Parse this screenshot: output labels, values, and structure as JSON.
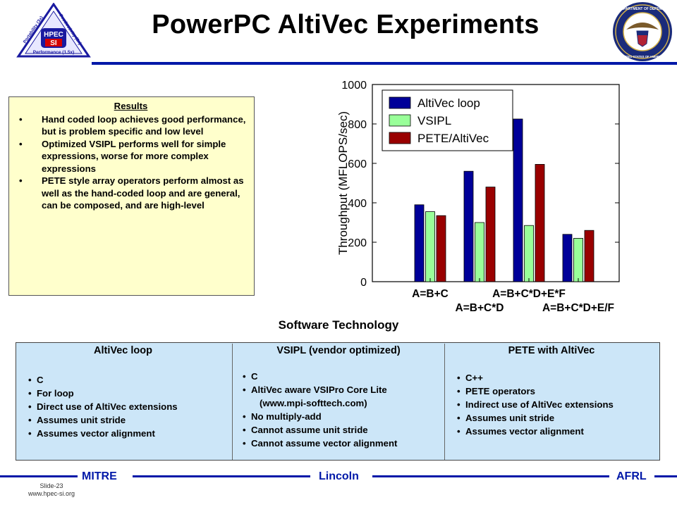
{
  "title": "PowerPC AltiVec Experiments",
  "logo_left": {
    "name": "HPEC SI",
    "line1": "HPEC",
    "line2": "SI",
    "left_side": "Portability (3x)",
    "right_side": "Productivity (3x)",
    "bottom": "Performance (1.5x)"
  },
  "logo_right": {
    "top_text": "DEPARTMENT OF DEFENSE",
    "bottom_text": "UNITED STATES OF AMERICA"
  },
  "results": {
    "heading": "Results",
    "items": [
      "Hand coded loop achieves good performance, but is problem specific and low level",
      "Optimized VSIPL performs well for simple expressions, worse for more complex expressions",
      "PETE style array operators perform almost as well as the hand-coded loop and are general, can be composed, and are high-level"
    ]
  },
  "chart_data": {
    "type": "bar",
    "title": "",
    "xlabel": "",
    "ylabel": "Throughput (MFLOPS/sec)",
    "ylim": [
      0,
      1000
    ],
    "yticks": [
      0,
      200,
      400,
      600,
      800,
      1000
    ],
    "categories": [
      "A=B+C",
      "A=B+C*D",
      "A=B+C*D+E*F",
      "A=B+C*D+E/F"
    ],
    "series": [
      {
        "name": "AltiVec loop",
        "color": "#000099",
        "values": [
          390,
          560,
          825,
          240
        ]
      },
      {
        "name": "VSIPL",
        "color": "#99ff99",
        "values": [
          355,
          300,
          285,
          220
        ]
      },
      {
        "name": "PETE/AltiVec",
        "color": "#990000",
        "values": [
          335,
          480,
          595,
          260
        ]
      }
    ],
    "legend_position": "top-left",
    "grid": false
  },
  "software": {
    "title": "Software Technology",
    "columns": [
      {
        "heading": "AltiVec loop",
        "items": [
          "C",
          "For loop",
          "Direct use of AltiVec extensions",
          "Assumes unit stride",
          "Assumes vector alignment"
        ]
      },
      {
        "heading": "VSIPL (vendor optimized)",
        "items": [
          "C",
          "AltiVec aware VSIPro Core Lite",
          "(www.mpi-softtech.com)",
          "No multiply-add",
          "Cannot assume unit stride",
          "Cannot assume vector alignment"
        ]
      },
      {
        "heading": "PETE with AltiVec",
        "items": [
          "C++",
          "PETE operators",
          "Indirect use of AltiVec extensions",
          "Assumes unit stride",
          "Assumes vector alignment"
        ]
      }
    ]
  },
  "footer": {
    "left": "MITRE",
    "center": "Lincoln",
    "right": "AFRL",
    "slide": "Slide-23",
    "url": "www.hpec-si.org"
  }
}
